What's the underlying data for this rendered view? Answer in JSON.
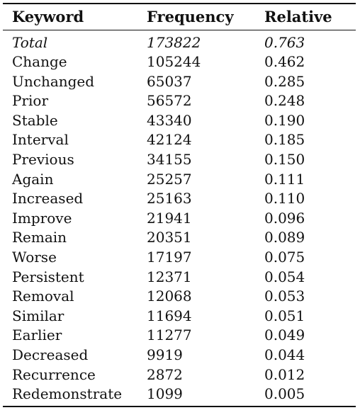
{
  "table": {
    "headers": [
      "Keyword",
      "Frequency",
      "Relative"
    ],
    "total": {
      "keyword": "Total",
      "frequency": "173822",
      "relative": "0.763"
    },
    "rows": [
      {
        "keyword": "Change",
        "frequency": "105244",
        "relative": "0.462"
      },
      {
        "keyword": "Unchanged",
        "frequency": "65037",
        "relative": "0.285"
      },
      {
        "keyword": "Prior",
        "frequency": "56572",
        "relative": "0.248"
      },
      {
        "keyword": "Stable",
        "frequency": "43340",
        "relative": "0.190"
      },
      {
        "keyword": "Interval",
        "frequency": "42124",
        "relative": "0.185"
      },
      {
        "keyword": "Previous",
        "frequency": "34155",
        "relative": "0.150"
      },
      {
        "keyword": "Again",
        "frequency": "25257",
        "relative": "0.111"
      },
      {
        "keyword": "Increased",
        "frequency": "25163",
        "relative": "0.110"
      },
      {
        "keyword": "Improve",
        "frequency": "21941",
        "relative": "0.096"
      },
      {
        "keyword": "Remain",
        "frequency": "20351",
        "relative": "0.089"
      },
      {
        "keyword": "Worse",
        "frequency": "17197",
        "relative": "0.075"
      },
      {
        "keyword": "Persistent",
        "frequency": "12371",
        "relative": "0.054"
      },
      {
        "keyword": "Removal",
        "frequency": "12068",
        "relative": "0.053"
      },
      {
        "keyword": "Similar",
        "frequency": "11694",
        "relative": "0.051"
      },
      {
        "keyword": "Earlier",
        "frequency": "11277",
        "relative": "0.049"
      },
      {
        "keyword": "Decreased",
        "frequency": "9919",
        "relative": "0.044"
      },
      {
        "keyword": "Recurrence",
        "frequency": "2872",
        "relative": "0.012"
      },
      {
        "keyword": "Redemonstrate",
        "frequency": "1099",
        "relative": "0.005"
      }
    ]
  }
}
